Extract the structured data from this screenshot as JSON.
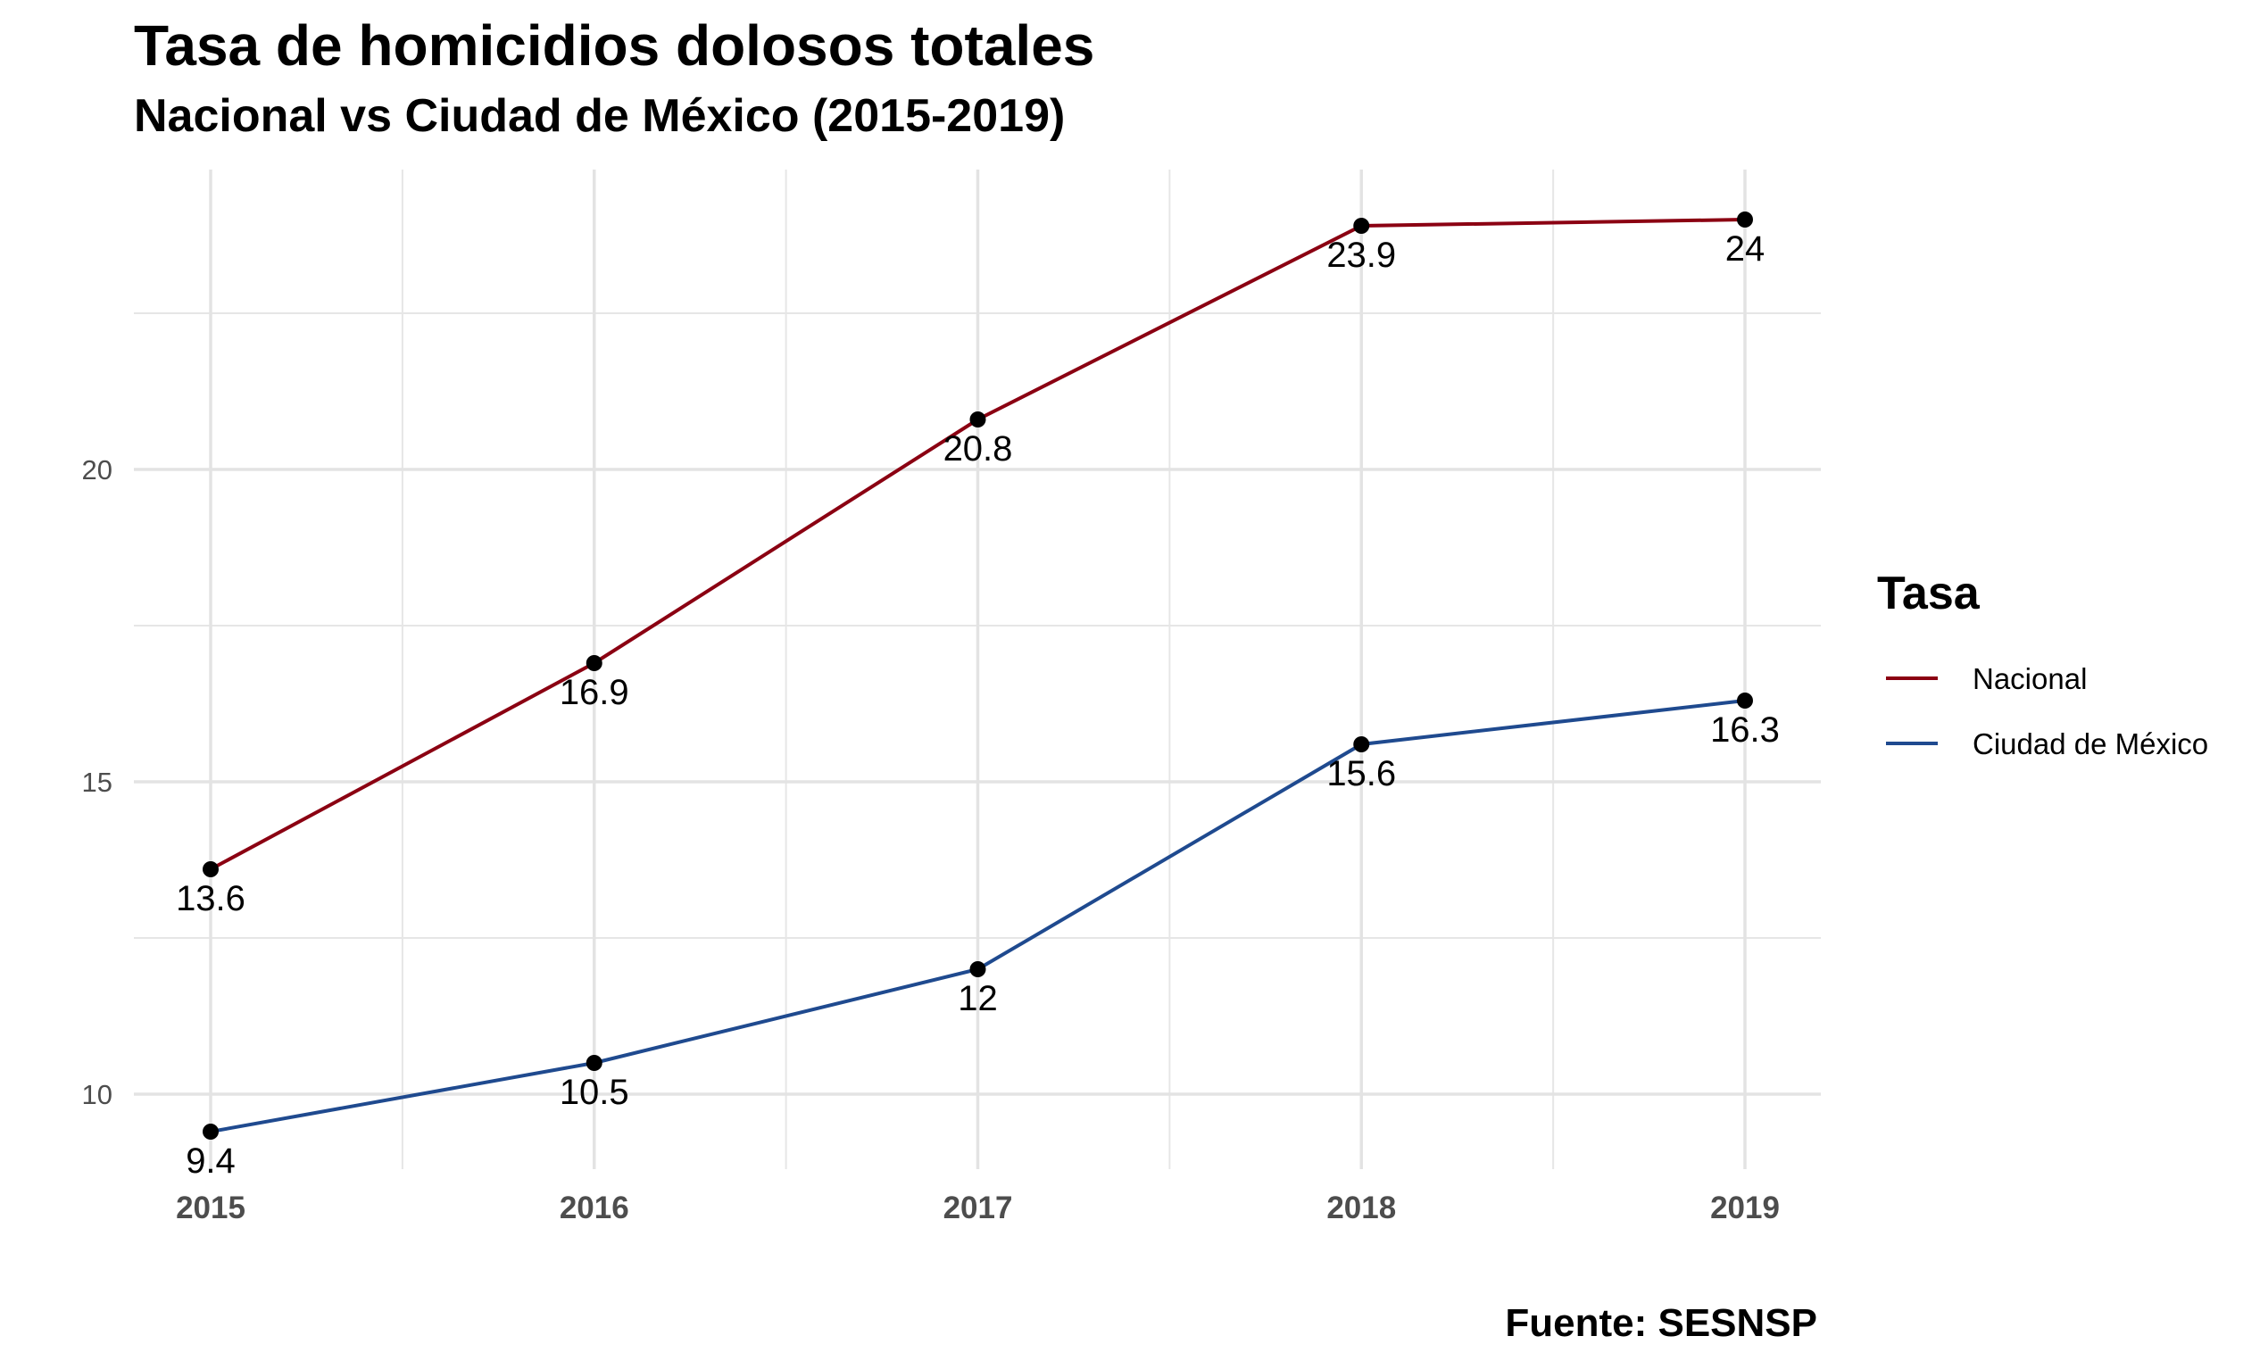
{
  "chart_data": {
    "type": "line",
    "title": "Tasa de homicidios dolosos totales",
    "subtitle": "Nacional vs Ciudad de México (2015-2019)",
    "caption": "Fuente: SESNSP",
    "xlabel": "",
    "ylabel": "",
    "x": [
      "2015",
      "2016",
      "2017",
      "2018",
      "2019"
    ],
    "ylim": [
      8.8,
      24.8
    ],
    "yticks": [
      10,
      15,
      20
    ],
    "grid": true,
    "legend": {
      "title": "Tasa",
      "placement": "right"
    },
    "series": [
      {
        "name": "Nacional",
        "color": "#8B0012",
        "values": [
          13.6,
          16.9,
          20.8,
          23.9,
          24.0
        ],
        "labels": [
          "13.6",
          "16.9",
          "20.8",
          "23.9",
          "24"
        ]
      },
      {
        "name": "Ciudad de México",
        "color": "#1F4A8F",
        "values": [
          9.4,
          10.5,
          12.0,
          15.6,
          16.3
        ],
        "labels": [
          "9.4",
          "10.5",
          "12",
          "15.6",
          "16.3"
        ]
      }
    ],
    "point_color": "#000000",
    "grid_color": "#e6e6e6"
  }
}
